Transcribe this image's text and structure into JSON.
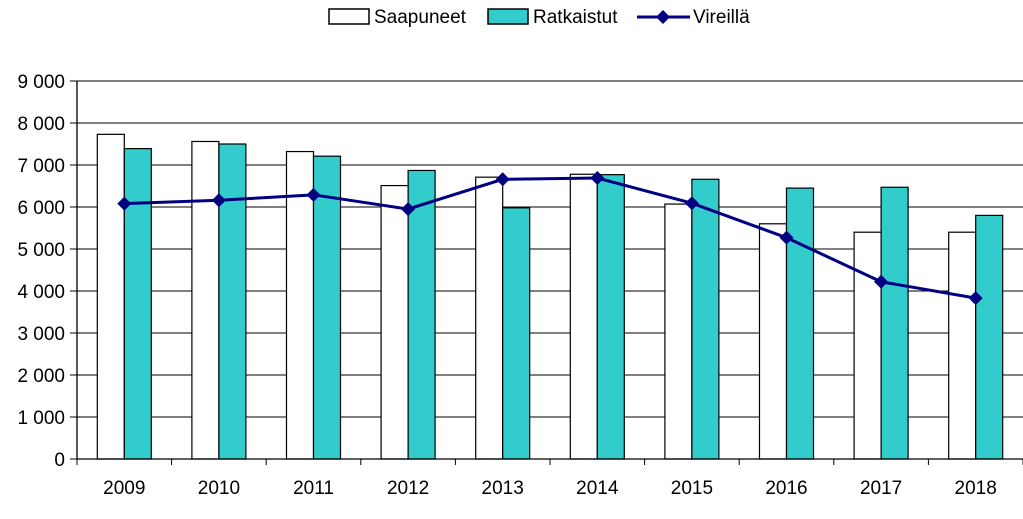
{
  "chart_data": {
    "type": "bar",
    "categories": [
      "2009",
      "2010",
      "2011",
      "2012",
      "2013",
      "2014",
      "2015",
      "2016",
      "2017",
      "2018"
    ],
    "series": [
      {
        "name": "Saapuneet",
        "type": "bar",
        "color": "#ffffff",
        "values": [
          7730,
          7560,
          7320,
          6510,
          6710,
          6780,
          6070,
          5600,
          5400,
          5400
        ]
      },
      {
        "name": "Ratkaistut",
        "type": "bar",
        "color": "#33cccc",
        "values": [
          7390,
          7500,
          7210,
          6870,
          5980,
          6770,
          6660,
          6450,
          6470,
          5800
        ]
      },
      {
        "name": "Vireillä",
        "type": "line",
        "color": "#000080",
        "marker": "diamond",
        "values": [
          6080,
          6160,
          6290,
          5950,
          6660,
          6690,
          6090,
          5270,
          4220,
          3830
        ]
      }
    ],
    "ylim": [
      0,
      9000
    ],
    "yticks": [
      0,
      1000,
      2000,
      3000,
      4000,
      5000,
      6000,
      7000,
      8000,
      9000
    ],
    "ytick_labels": [
      "0",
      "1 000",
      "2 000",
      "3 000",
      "4 000",
      "5 000",
      "6 000",
      "7 000",
      "8 000",
      "9 000"
    ],
    "grid": true,
    "legend_position": "top"
  }
}
